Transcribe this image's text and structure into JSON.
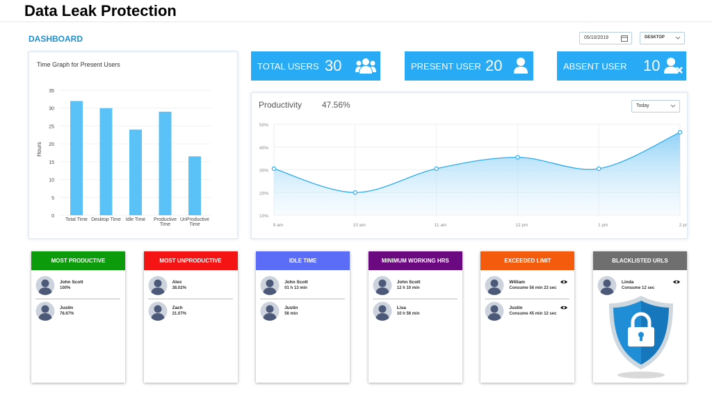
{
  "page_title": "Data Leak Protection",
  "section": "DASHBOARD",
  "date": "05/10/2019",
  "device": "DESKTOP",
  "stat_color": "#29aaf4",
  "stats": [
    {
      "label": "TOTAL USERS",
      "value": 30
    },
    {
      "label": "PRESENT USER",
      "value": 20
    },
    {
      "label": "ABSENT USER",
      "value": 10
    }
  ],
  "chart_data": [
    {
      "type": "bar",
      "title": "Time Graph for Present Users",
      "y_label": "Hours",
      "categories": [
        "Total Time",
        "Desktop Time",
        "Idle Time",
        "Productive Time",
        "UnProductive Time"
      ],
      "values": [
        32,
        30,
        24,
        29,
        16.5
      ],
      "color": "#5bc2f7",
      "ylim": [
        0,
        35
      ],
      "yticks": [
        0,
        5,
        10,
        15,
        20,
        25,
        30,
        35
      ],
      "grid": true
    },
    {
      "type": "line",
      "title": "Productivity",
      "current": "47.56%",
      "period": "Today",
      "categories": [
        "9 am",
        "10 am",
        "11 am",
        "12 pm",
        "1 pm",
        "2 pm"
      ],
      "values": [
        30.5,
        20,
        30.5,
        35.5,
        30.5,
        46.5
      ],
      "color": "#29aaf4",
      "ylim": [
        10,
        50
      ],
      "yticks": [
        {
          "value": 10,
          "label": "10%"
        },
        {
          "value": 20,
          "label": "20%"
        },
        {
          "value": 30,
          "label": "30%"
        },
        {
          "value": 40,
          "label": "40%"
        },
        {
          "value": 50,
          "label": "50%"
        }
      ],
      "grid": true
    }
  ],
  "cards": [
    {
      "title": "MOST PRODUCTIVE",
      "color": "#0b9b0b",
      "users": [
        {
          "name": "John Scott",
          "detail": "100%"
        },
        {
          "name": "Justin",
          "detail": "78.67%"
        }
      ]
    },
    {
      "title": "MOST UNPRODUCTIVE",
      "color": "#f51414",
      "users": [
        {
          "name": "Alex",
          "detail": "38.02%"
        },
        {
          "name": "Zach",
          "detail": "21.07%"
        }
      ]
    },
    {
      "title": "IDLE TIME",
      "color": "#5b6cf6",
      "users": [
        {
          "name": "John Scott",
          "detail": "01 h 13 min"
        },
        {
          "name": "Justin",
          "detail": "56 min"
        }
      ]
    },
    {
      "title": "MINIMUM WORKING HRS",
      "color": "#6b0a80",
      "users": [
        {
          "name": "John Scott",
          "detail": "12 h 10 min"
        },
        {
          "name": "Lisa",
          "detail": "10 h 56 min"
        }
      ]
    },
    {
      "title": "EXCEEDED LIMIT",
      "color": "#f45b0c",
      "users": [
        {
          "name": "William",
          "detail": "Consume 56 min 23 sec"
        },
        {
          "name": "Justin",
          "detail": "Consume 45 min 12 sec"
        }
      ]
    },
    {
      "title": "BLACKLISTED URLS",
      "color": "#6f6f6f",
      "users": [
        {
          "name": "Linda",
          "detail": "Consume 12 sec"
        }
      ]
    }
  ]
}
